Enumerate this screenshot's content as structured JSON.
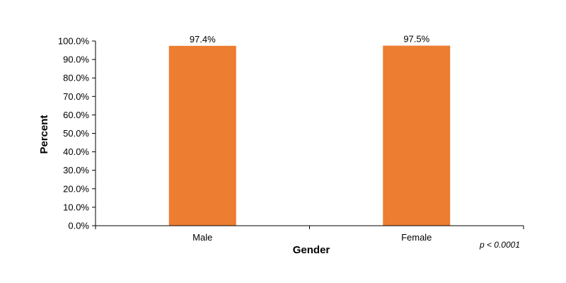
{
  "chart_data": {
    "type": "bar",
    "categories": [
      "Male",
      "Female"
    ],
    "values": [
      97.4,
      97.5
    ],
    "data_labels": [
      "97.4%",
      "97.5%"
    ],
    "xlabel": "Gender",
    "ylabel": "Percent",
    "ylim": [
      0,
      100
    ],
    "yticks": [
      "0.0%",
      "10.0%",
      "20.0%",
      "30.0%",
      "40.0%",
      "50.0%",
      "60.0%",
      "70.0%",
      "80.0%",
      "90.0%",
      "100.0%"
    ],
    "grid": false,
    "legend": "none",
    "bar_color": "#ED7D31",
    "annotation": "p < 0.0001"
  }
}
